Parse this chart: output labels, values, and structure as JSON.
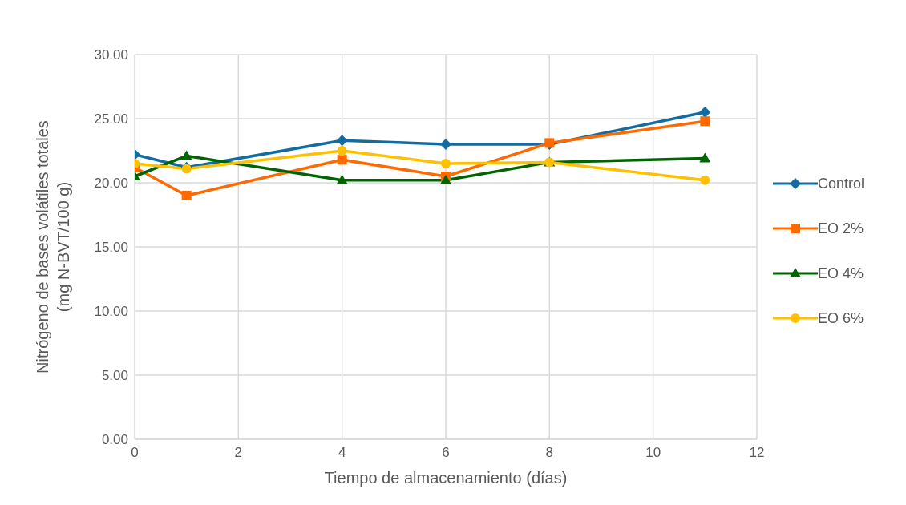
{
  "chart_data": {
    "type": "line",
    "xlabel": "Tiempo de almacenamiento (días)",
    "ylabel": "Nitrógeno de bases volátiles totales (mg N-BVT/100 g)",
    "x": [
      0,
      1,
      4,
      6,
      8,
      11
    ],
    "series": [
      {
        "name": "Control",
        "color": "#126ca0",
        "marker": "diamond",
        "values": [
          22.2,
          21.2,
          23.3,
          23.0,
          23.0,
          25.5
        ]
      },
      {
        "name": "EO 2%",
        "color": "#ff6a00",
        "marker": "square",
        "values": [
          21.2,
          19.0,
          21.8,
          20.5,
          23.1,
          24.8
        ]
      },
      {
        "name": "EO 4%",
        "color": "#006400",
        "marker": "triangle",
        "values": [
          20.5,
          22.1,
          20.2,
          20.2,
          21.6,
          21.9
        ]
      },
      {
        "name": "EO 6%",
        "color": "#ffc000",
        "marker": "circle",
        "values": [
          21.5,
          21.1,
          22.5,
          21.5,
          21.6,
          20.2
        ]
      }
    ],
    "xlim": [
      0,
      12
    ],
    "xticks": [
      0,
      2,
      4,
      6,
      8,
      10,
      12
    ],
    "ylim": [
      0,
      30
    ],
    "yticks": [
      {
        "value": 0,
        "label": "0.00"
      },
      {
        "value": 5,
        "label": "5.00"
      },
      {
        "value": 10,
        "label": "10.00"
      },
      {
        "value": 15,
        "label": "15.00"
      },
      {
        "value": 20,
        "label": "20.00"
      },
      {
        "value": 25,
        "label": "25.00"
      },
      {
        "value": 30,
        "label": "30.00"
      }
    ],
    "grid": true,
    "legend": "right",
    "line_style": "solid"
  }
}
